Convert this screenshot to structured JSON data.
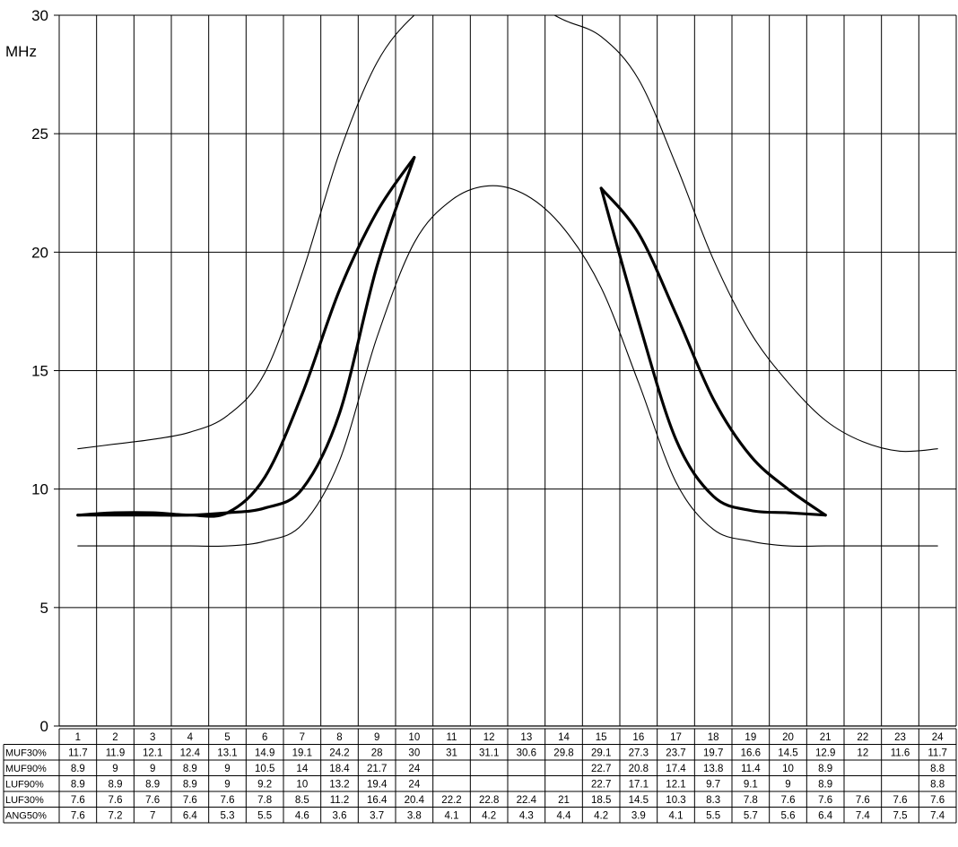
{
  "chart_data": {
    "type": "line",
    "unit_label": "MHz",
    "ylim": [
      0,
      30
    ],
    "yticks": [
      0,
      5,
      10,
      15,
      20,
      25,
      30
    ],
    "grid": true,
    "legend": "none",
    "hours": [
      1,
      2,
      3,
      4,
      5,
      6,
      7,
      8,
      9,
      10,
      11,
      12,
      13,
      14,
      15,
      16,
      17,
      18,
      19,
      20,
      21,
      22,
      23,
      24
    ],
    "series": [
      {
        "name": "MUF30%",
        "style": "thin",
        "values": [
          11.7,
          11.9,
          12.1,
          12.4,
          13.1,
          14.9,
          19.1,
          24.2,
          28,
          30,
          31,
          31.1,
          30.6,
          29.8,
          29.1,
          27.3,
          23.7,
          19.7,
          16.6,
          14.5,
          12.9,
          12,
          11.6,
          11.7
        ]
      },
      {
        "name": "MUF90%",
        "style": "thick",
        "values": [
          8.9,
          9,
          9,
          8.9,
          9,
          10.5,
          14,
          18.4,
          21.7,
          24,
          null,
          null,
          null,
          null,
          22.7,
          20.8,
          17.4,
          13.8,
          11.4,
          10,
          8.9,
          null,
          null,
          8.8
        ]
      },
      {
        "name": "LUF90%",
        "style": "thick",
        "values": [
          8.9,
          8.9,
          8.9,
          8.9,
          9,
          9.2,
          10,
          13.2,
          19.4,
          24,
          null,
          null,
          null,
          null,
          22.7,
          17.1,
          12.1,
          9.7,
          9.1,
          9,
          8.9,
          null,
          null,
          8.8
        ]
      },
      {
        "name": "LUF30%",
        "style": "thin",
        "values": [
          7.6,
          7.6,
          7.6,
          7.6,
          7.6,
          7.8,
          8.5,
          11.2,
          16.4,
          20.4,
          22.2,
          22.8,
          22.4,
          21,
          18.5,
          14.5,
          10.3,
          8.3,
          7.8,
          7.6,
          7.6,
          7.6,
          7.6,
          7.6
        ]
      }
    ],
    "table": {
      "rows": [
        {
          "label": "MUF30%",
          "cells": [
            "11.7",
            "11.9",
            "12.1",
            "12.4",
            "13.1",
            "14.9",
            "19.1",
            "24.2",
            "28",
            "30",
            "31",
            "31.1",
            "30.6",
            "29.8",
            "29.1",
            "27.3",
            "23.7",
            "19.7",
            "16.6",
            "14.5",
            "12.9",
            "12",
            "11.6",
            "11.7"
          ]
        },
        {
          "label": "MUF90%",
          "cells": [
            "8.9",
            "9",
            "9",
            "8.9",
            "9",
            "10.5",
            "14",
            "18.4",
            "21.7",
            "24",
            "",
            "",
            "",
            "",
            "22.7",
            "20.8",
            "17.4",
            "13.8",
            "11.4",
            "10",
            "8.9",
            "",
            "",
            "8.8"
          ]
        },
        {
          "label": "LUF90%",
          "cells": [
            "8.9",
            "8.9",
            "8.9",
            "8.9",
            "9",
            "9.2",
            "10",
            "13.2",
            "19.4",
            "24",
            "",
            "",
            "",
            "",
            "22.7",
            "17.1",
            "12.1",
            "9.7",
            "9.1",
            "9",
            "8.9",
            "",
            "",
            "8.8"
          ]
        },
        {
          "label": "LUF30%",
          "cells": [
            "7.6",
            "7.6",
            "7.6",
            "7.6",
            "7.6",
            "7.8",
            "8.5",
            "11.2",
            "16.4",
            "20.4",
            "22.2",
            "22.8",
            "22.4",
            "21",
            "18.5",
            "14.5",
            "10.3",
            "8.3",
            "7.8",
            "7.6",
            "7.6",
            "7.6",
            "7.6",
            "7.6"
          ]
        },
        {
          "label": "ANG50%",
          "cells": [
            "7.6",
            "7.2",
            "7",
            "6.4",
            "5.3",
            "5.5",
            "4.6",
            "3.6",
            "3.7",
            "3.8",
            "4.1",
            "4.2",
            "4.3",
            "4.4",
            "4.2",
            "3.9",
            "4.1",
            "5.5",
            "5.7",
            "5.6",
            "6.4",
            "7.4",
            "7.5",
            "7.4"
          ]
        }
      ]
    }
  }
}
